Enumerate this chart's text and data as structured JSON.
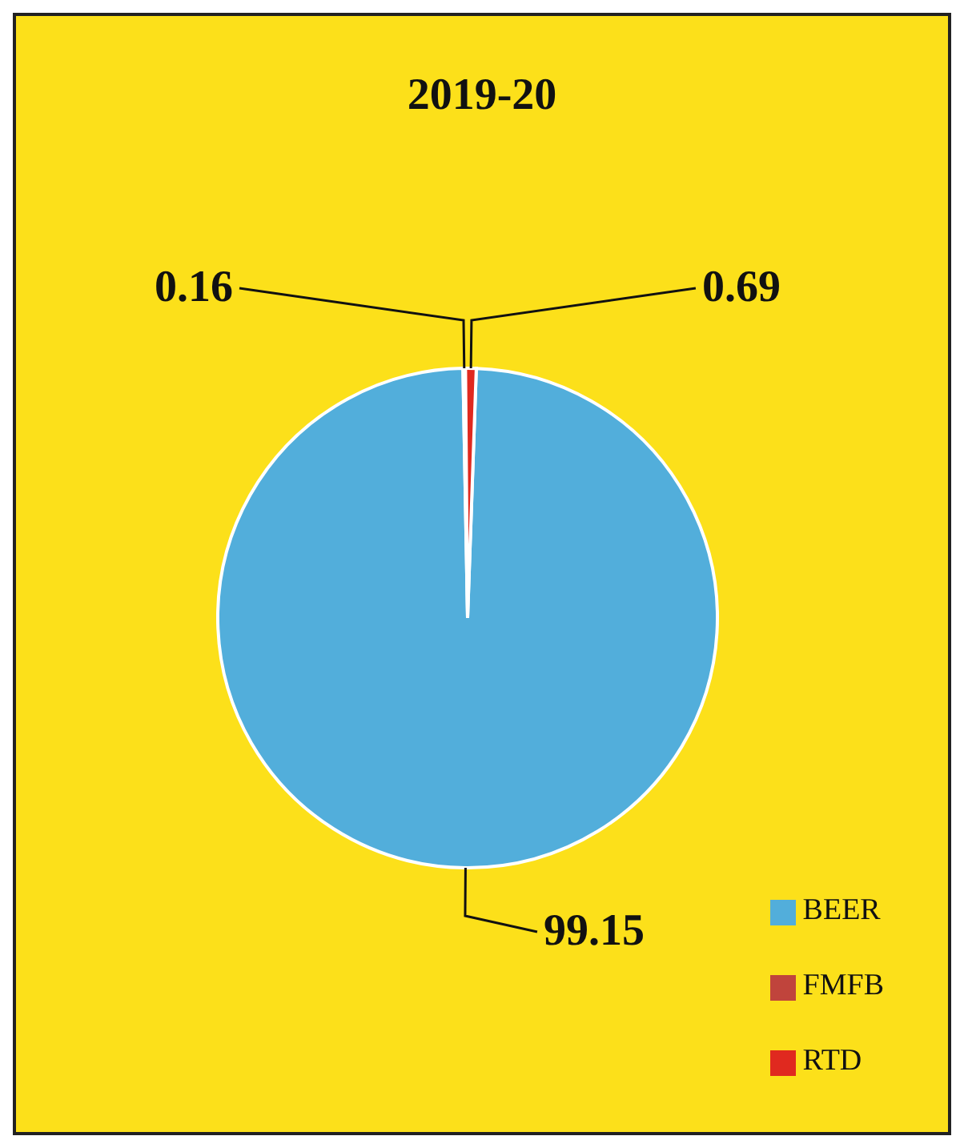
{
  "chart_data": {
    "type": "pie",
    "title": "2019-20",
    "categories": [
      "BEER",
      "FMFB",
      "RTD"
    ],
    "values": [
      99.15,
      0.16,
      0.69
    ],
    "colors": [
      "#52aedb",
      "#c0443c",
      "#e0291f"
    ],
    "data_labels": true,
    "legend": "bottom right"
  }
}
